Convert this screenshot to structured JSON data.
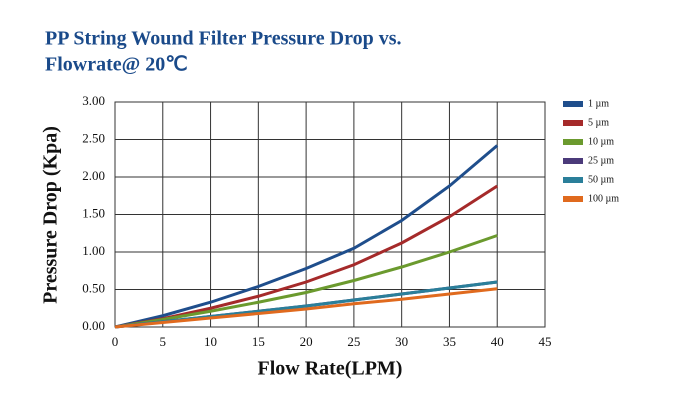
{
  "chart_data": {
    "type": "line",
    "title": [
      "PP String Wound Filter Pressure Drop vs.",
      "Flowrate@ 20℃"
    ],
    "x_label": "Flow Rate(LPM)",
    "y_label": "Pressure Drop (Kpa)",
    "x": [
      0,
      5,
      10,
      15,
      20,
      25,
      30,
      35,
      40
    ],
    "series": [
      {
        "name": "1 µm",
        "color": "#1f4e8c",
        "values": [
          0,
          0.15,
          0.33,
          0.54,
          0.78,
          1.05,
          1.42,
          1.88,
          2.42
        ]
      },
      {
        "name": "5 µm",
        "color": "#a52a2a",
        "values": [
          0,
          0.11,
          0.25,
          0.41,
          0.6,
          0.83,
          1.12,
          1.47,
          1.88
        ]
      },
      {
        "name": "10 µm",
        "color": "#6b9a2e",
        "values": [
          0,
          0.1,
          0.21,
          0.33,
          0.46,
          0.62,
          0.8,
          1.0,
          1.22
        ]
      },
      {
        "name": "25 µm",
        "color": "#4b3a7a",
        "values": [
          0,
          0.07,
          0.14,
          0.21,
          0.28,
          0.36,
          0.44,
          0.52,
          0.6
        ]
      },
      {
        "name": "50 µm",
        "color": "#2a7f9a",
        "values": [
          0,
          0.07,
          0.14,
          0.21,
          0.28,
          0.36,
          0.44,
          0.52,
          0.6
        ]
      },
      {
        "name": "100 µm",
        "color": "#e06a1e",
        "values": [
          0,
          0.06,
          0.12,
          0.18,
          0.24,
          0.31,
          0.37,
          0.44,
          0.51
        ]
      }
    ],
    "xlim": [
      0,
      45
    ],
    "xticks": [
      0,
      5,
      10,
      15,
      20,
      25,
      30,
      35,
      40,
      45
    ],
    "ylim": [
      0,
      3
    ],
    "yticks": [
      {
        "value": 0,
        "label": "0.00"
      },
      {
        "value": 0.5,
        "label": "0.50"
      },
      {
        "value": 1,
        "label": "1.00"
      },
      {
        "value": 1.5,
        "label": "1.50"
      },
      {
        "value": 2,
        "label": "2.00"
      },
      {
        "value": 2.5,
        "label": "2.50"
      },
      {
        "value": 3,
        "label": "3.00"
      }
    ],
    "grid": true,
    "legend": "right"
  }
}
